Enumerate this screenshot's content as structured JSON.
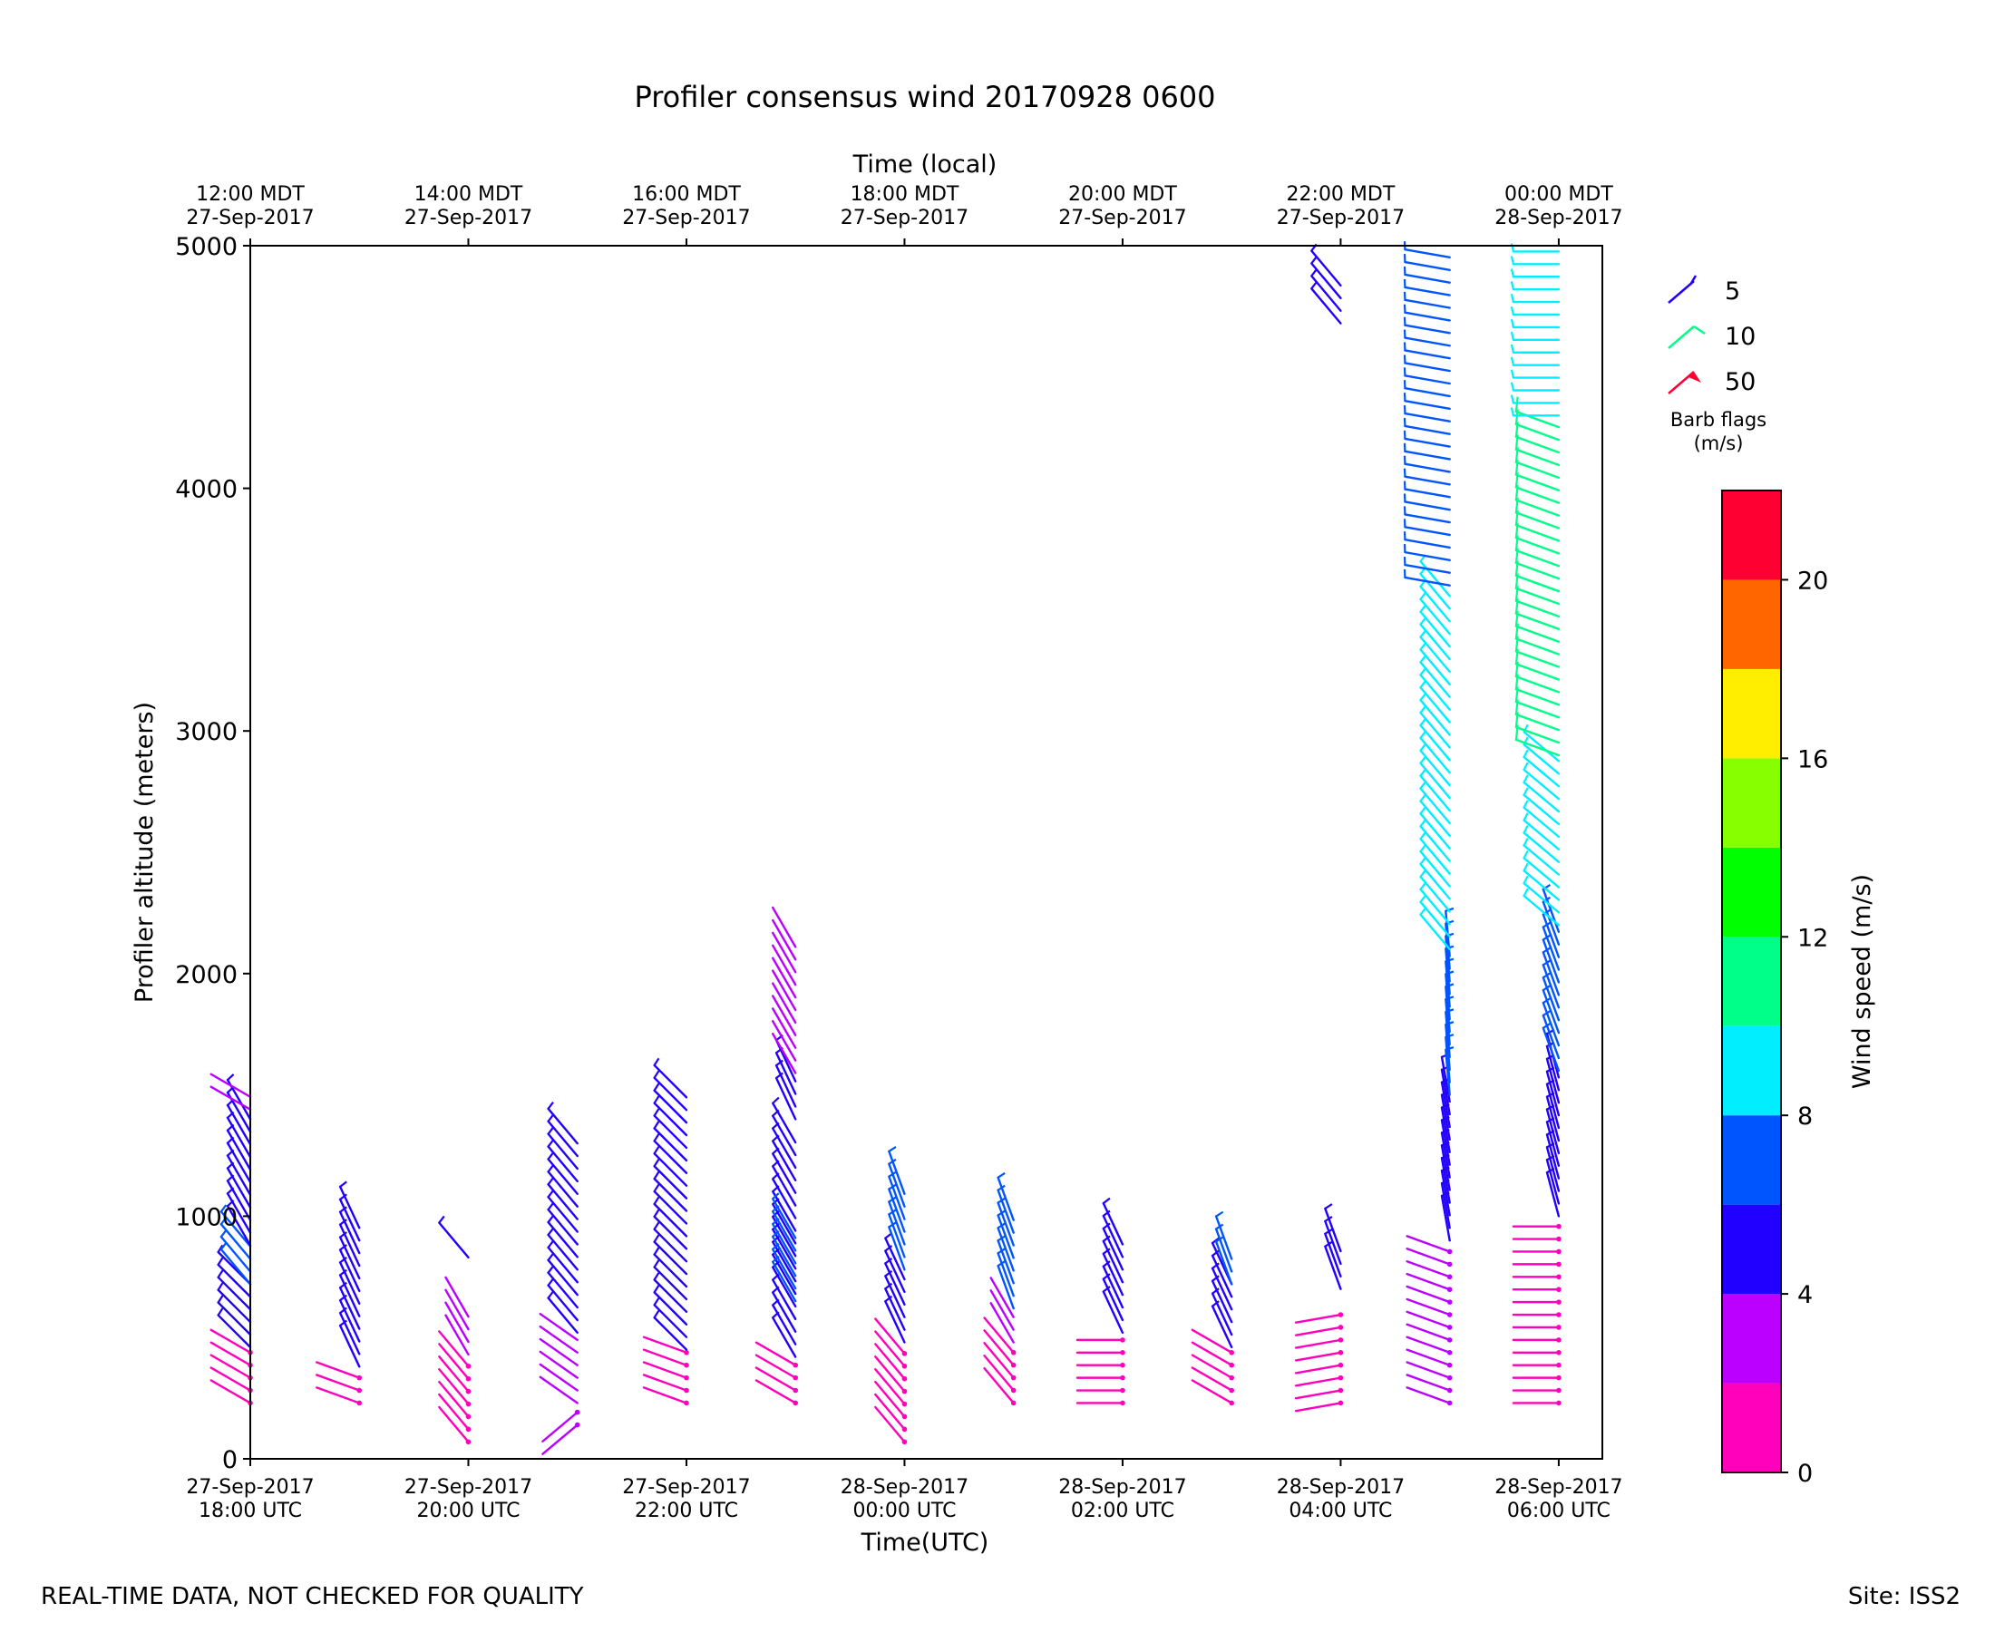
{
  "footer": {
    "disclaimer": "REAL-TIME DATA, NOT CHECKED FOR QUALITY",
    "site": "Site: ISS2"
  },
  "chart_data": {
    "type": "wind_barbs",
    "title": "Profiler consensus wind 20170928 0600",
    "xlabel": "Time(UTC)",
    "xlabel_top": "Time (local)",
    "ylabel": "Profiler altitude (meters)",
    "xlim_hours_since_18utc": [
      0,
      12.4
    ],
    "ylim": [
      0,
      5000
    ],
    "yticks": [
      0,
      1000,
      2000,
      3000,
      4000,
      5000
    ],
    "xticks_utc": [
      {
        "hour": 0,
        "line1": "27-Sep-2017",
        "line2": "18:00 UTC"
      },
      {
        "hour": 2,
        "line1": "27-Sep-2017",
        "line2": "20:00 UTC"
      },
      {
        "hour": 4,
        "line1": "27-Sep-2017",
        "line2": "22:00 UTC"
      },
      {
        "hour": 6,
        "line1": "28-Sep-2017",
        "line2": "00:00 UTC"
      },
      {
        "hour": 8,
        "line1": "28-Sep-2017",
        "line2": "02:00 UTC"
      },
      {
        "hour": 10,
        "line1": "28-Sep-2017",
        "line2": "04:00 UTC"
      },
      {
        "hour": 12,
        "line1": "28-Sep-2017",
        "line2": "06:00 UTC"
      }
    ],
    "xticks_local": [
      {
        "hour": 0,
        "line1": "12:00 MDT",
        "line2": "27-Sep-2017"
      },
      {
        "hour": 2,
        "line1": "14:00 MDT",
        "line2": "27-Sep-2017"
      },
      {
        "hour": 4,
        "line1": "16:00 MDT",
        "line2": "27-Sep-2017"
      },
      {
        "hour": 6,
        "line1": "18:00 MDT",
        "line2": "27-Sep-2017"
      },
      {
        "hour": 8,
        "line1": "20:00 MDT",
        "line2": "27-Sep-2017"
      },
      {
        "hour": 10,
        "line1": "22:00 MDT",
        "line2": "27-Sep-2017"
      },
      {
        "hour": 12,
        "line1": "00:00 MDT",
        "line2": "28-Sep-2017"
      }
    ],
    "legend": {
      "title_line1": "Barb flags",
      "title_line2": "(m/s)",
      "entries": [
        {
          "label": "5",
          "color": "#2200ff"
        },
        {
          "label": "10",
          "color": "#00ff88"
        },
        {
          "label": "50",
          "color": "#ff0033"
        }
      ]
    },
    "colorbar": {
      "label": "Wind speed (m/s)",
      "bounds": [
        0,
        2,
        4,
        6,
        8,
        10,
        12,
        14,
        16,
        18,
        20,
        22
      ],
      "colors": [
        "#ff00bb",
        "#bb00ff",
        "#2200ff",
        "#0055ff",
        "#00eeff",
        "#00ff88",
        "#00ff00",
        "#88ff00",
        "#ffee00",
        "#ff6600",
        "#ff0033"
      ],
      "ticks": [
        0,
        4,
        8,
        12,
        16,
        20
      ]
    },
    "profiles": [
      {
        "hour": 0.0,
        "segments": [
          {
            "z0": 230,
            "z1": 460,
            "spd": 1.5,
            "dir": 300
          },
          {
            "z0": 460,
            "z1": 720,
            "spd": 5.0,
            "dir": 315
          },
          {
            "z0": 720,
            "z1": 880,
            "spd": 6.5,
            "dir": 320
          },
          {
            "z0": 880,
            "z1": 1440,
            "spd": 5.0,
            "dir": 330
          },
          {
            "z0": 1440,
            "z1": 1530,
            "spd": 3.0,
            "dir": 300
          }
        ]
      },
      {
        "hour": 1.0,
        "segments": [
          {
            "z0": 230,
            "z1": 380,
            "spd": 1.5,
            "dir": 290
          },
          {
            "z0": 380,
            "z1": 980,
            "spd": 5.0,
            "dir": 335
          }
        ]
      },
      {
        "hour": 2.0,
        "segments": [
          {
            "z0": 70,
            "z1": 430,
            "spd": 1.8,
            "dir": 320
          },
          {
            "z0": 430,
            "z1": 630,
            "spd": 3.0,
            "dir": 330
          },
          {
            "z0": 830,
            "z1": 830,
            "spd": 5.0,
            "dir": 320
          }
        ]
      },
      {
        "hour": 3.0,
        "segments": [
          {
            "z0": 140,
            "z1": 230,
            "spd": 2.0,
            "dir": 230
          },
          {
            "z0": 230,
            "z1": 520,
            "spd": 3.0,
            "dir": 305
          },
          {
            "z0": 520,
            "z1": 1330,
            "spd": 5.0,
            "dir": 320
          }
        ]
      },
      {
        "hour": 4.0,
        "segments": [
          {
            "z0": 230,
            "z1": 450,
            "spd": 1.5,
            "dir": 290
          },
          {
            "z0": 450,
            "z1": 1530,
            "spd": 5.0,
            "dir": 315
          }
        ]
      },
      {
        "hour": 5.0,
        "segments": [
          {
            "z0": 230,
            "z1": 420,
            "spd": 1.5,
            "dir": 300
          },
          {
            "z0": 420,
            "z1": 1350,
            "spd": 5.0,
            "dir": 330
          },
          {
            "z0": 650,
            "z1": 950,
            "spd": 6.8,
            "dir": 330
          },
          {
            "z0": 1400,
            "z1": 1560,
            "spd": 4.5,
            "dir": 335
          },
          {
            "z0": 1590,
            "z1": 2130,
            "spd": 3.0,
            "dir": 330
          }
        ]
      },
      {
        "hour": 6.0,
        "segments": [
          {
            "z0": 70,
            "z1": 480,
            "spd": 1.5,
            "dir": 320
          },
          {
            "z0": 480,
            "z1": 780,
            "spd": 5.0,
            "dir": 335
          },
          {
            "z0": 780,
            "z1": 1130,
            "spd": 6.5,
            "dir": 340
          }
        ]
      },
      {
        "hour": 7.0,
        "segments": [
          {
            "z0": 230,
            "z1": 480,
            "spd": 1.5,
            "dir": 320
          },
          {
            "z0": 480,
            "z1": 620,
            "spd": 3.0,
            "dir": 330
          },
          {
            "z0": 620,
            "z1": 1030,
            "spd": 6.5,
            "dir": 340
          }
        ]
      },
      {
        "hour": 8.0,
        "segments": [
          {
            "z0": 230,
            "z1": 520,
            "spd": 1.5,
            "dir": 270
          },
          {
            "z0": 520,
            "z1": 930,
            "spd": 5.0,
            "dir": 335
          }
        ]
      },
      {
        "hour": 9.0,
        "segments": [
          {
            "z0": 230,
            "z1": 460,
            "spd": 1.5,
            "dir": 300
          },
          {
            "z0": 460,
            "z1": 720,
            "spd": 5.0,
            "dir": 335
          },
          {
            "z0": 720,
            "z1": 870,
            "spd": 6.5,
            "dir": 340
          }
        ]
      },
      {
        "hour": 10.0,
        "segments": [
          {
            "z0": 230,
            "z1": 600,
            "spd": 1.5,
            "dir": 260
          },
          {
            "z0": 700,
            "z1": 870,
            "spd": 5.0,
            "dir": 340
          },
          {
            "z0": 4680,
            "z1": 4860,
            "spd": 5.5,
            "dir": 320
          }
        ]
      },
      {
        "hour": 11.0,
        "segments": [
          {
            "z0": 230,
            "z1": 900,
            "spd": 2.5,
            "dir": 290
          },
          {
            "z0": 900,
            "z1": 1500,
            "spd": 5.0,
            "dir": 350
          },
          {
            "z0": 1500,
            "z1": 2100,
            "spd": 6.5,
            "dir": 355
          },
          {
            "z0": 2100,
            "z1": 3600,
            "spd": 9.0,
            "dir": 320
          },
          {
            "z0": 3600,
            "z1": 5000,
            "spd": 7.0,
            "dir": 280
          }
        ]
      },
      {
        "hour": 12.0,
        "segments": [
          {
            "z0": 230,
            "z1": 1000,
            "spd": 1.5,
            "dir": 270
          },
          {
            "z0": 1000,
            "z1": 1600,
            "spd": 5.0,
            "dir": 345
          },
          {
            "z0": 1600,
            "z1": 2200,
            "spd": 7.0,
            "dir": 340
          },
          {
            "z0": 2200,
            "z1": 2900,
            "spd": 9.0,
            "dir": 310
          },
          {
            "z0": 2900,
            "z1": 4300,
            "spd": 11.0,
            "dir": 290
          },
          {
            "z0": 4300,
            "z1": 5000,
            "spd": 9.0,
            "dir": 270
          }
        ]
      }
    ]
  }
}
